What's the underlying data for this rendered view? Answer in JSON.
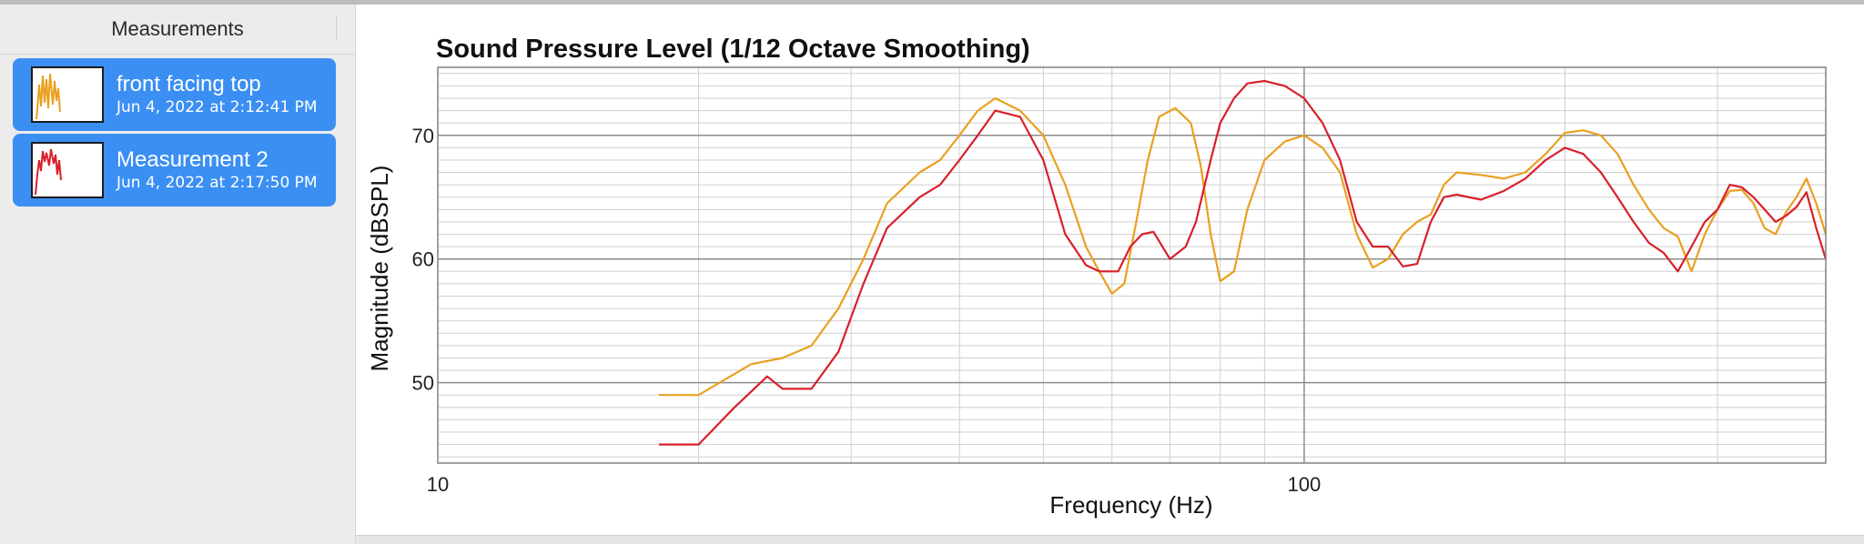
{
  "sidebar": {
    "title": "Measurements",
    "items": [
      {
        "name": "front facing top",
        "date": "Jun 4, 2022 at 2:12:41 PM",
        "color": "#e9a020"
      },
      {
        "name": "Measurement 2",
        "date": "Jun 4, 2022 at 2:17:50 PM",
        "color": "#d8202c"
      }
    ]
  },
  "colors": {
    "selection": "#3b8ff3",
    "series_orange": "#e9a020",
    "series_red": "#d8202c"
  },
  "chart_data": {
    "type": "line",
    "title": "Sound Pressure Level (1/12 Octave Smoothing)",
    "xlabel": "Frequency (Hz)",
    "ylabel": "Magnitude (dBSPL)",
    "xscale": "log",
    "xlim": [
      10,
      400
    ],
    "ylim": [
      43.5,
      75.5
    ],
    "xticks": [
      10,
      100
    ],
    "xtick_labels": [
      "10",
      "100"
    ],
    "yticks": [
      50,
      60,
      70
    ],
    "ytick_labels": [
      "50",
      "60",
      "70"
    ],
    "grid": true,
    "series": [
      {
        "name": "front facing top",
        "color": "#e9a020",
        "x": [
          18,
          20,
          23,
          25,
          27,
          29,
          31,
          33,
          36,
          38,
          40,
          42,
          44,
          47,
          50,
          53,
          56,
          58,
          60,
          62,
          64,
          66,
          68,
          71,
          74,
          76,
          78,
          80,
          83,
          86,
          90,
          95,
          100,
          105,
          110,
          115,
          120,
          125,
          130,
          135,
          140,
          145,
          150,
          160,
          170,
          180,
          190,
          200,
          210,
          220,
          230,
          240,
          250,
          260,
          270,
          280,
          290,
          300,
          310,
          320,
          330,
          340,
          350,
          360,
          370,
          380,
          390,
          400
        ],
        "y": [
          49,
          49,
          51.5,
          52,
          53,
          56,
          60,
          64.5,
          67,
          68,
          70,
          72,
          73,
          72,
          70,
          66,
          61,
          59,
          57.2,
          58,
          63,
          68,
          71.5,
          72.2,
          71,
          67.5,
          62,
          58.2,
          59,
          64,
          68,
          69.5,
          70,
          69,
          67,
          62,
          59.3,
          60,
          62,
          63,
          63.6,
          66,
          67,
          66.8,
          66.5,
          67,
          68.5,
          70.2,
          70.4,
          70,
          68.5,
          66,
          64,
          62.5,
          61.8,
          59,
          62,
          64,
          65.5,
          65.6,
          64.5,
          62.5,
          62,
          63.8,
          65,
          66.5,
          64.5,
          62
        ]
      },
      {
        "name": "Measurement 2",
        "color": "#d8202c",
        "x": [
          18,
          20,
          22,
          24,
          25,
          27,
          29,
          31,
          33,
          36,
          38,
          40,
          42,
          44,
          47,
          50,
          53,
          56,
          58,
          61,
          63,
          65,
          67,
          70,
          73,
          75,
          78,
          80,
          83,
          86,
          90,
          95,
          100,
          105,
          110,
          115,
          120,
          125,
          130,
          135,
          140,
          145,
          150,
          160,
          170,
          180,
          190,
          200,
          210,
          220,
          230,
          240,
          250,
          260,
          270,
          280,
          290,
          300,
          310,
          320,
          330,
          340,
          350,
          360,
          370,
          380,
          390,
          400
        ],
        "y": [
          45,
          45,
          48,
          50.5,
          49.5,
          49.5,
          52.5,
          58,
          62.5,
          65,
          66,
          68,
          70,
          72,
          71.5,
          68,
          62,
          59.5,
          59,
          59,
          61,
          62,
          62.2,
          60,
          61,
          63,
          68,
          71,
          73,
          74.2,
          74.4,
          74,
          73,
          71,
          68,
          63,
          61,
          61,
          59.4,
          59.6,
          63,
          65,
          65.2,
          64.8,
          65.5,
          66.5,
          68,
          69,
          68.5,
          67,
          65,
          63,
          61.3,
          60.5,
          59,
          61,
          63,
          64,
          66,
          65.8,
          65,
          64,
          63,
          63.5,
          64.2,
          65.4,
          62.5,
          60
        ]
      }
    ]
  }
}
